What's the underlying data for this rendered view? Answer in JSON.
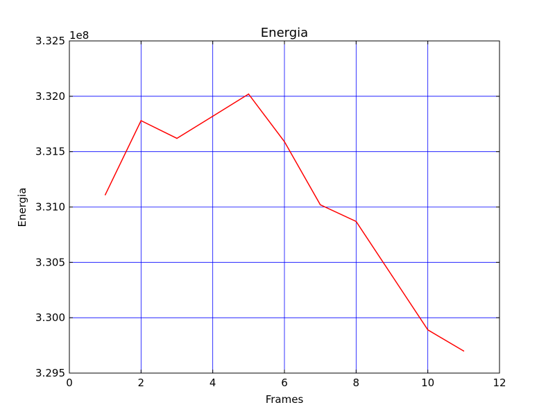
{
  "chart_data": {
    "type": "line",
    "title": "Energia",
    "xlabel": "Frames",
    "ylabel": "Energia",
    "y_offset_label": "1e8",
    "xlim": [
      0,
      12
    ],
    "ylim": [
      3.295,
      3.325
    ],
    "x_ticks": [
      0,
      2,
      4,
      6,
      8,
      10,
      12
    ],
    "x_tick_labels": [
      "0",
      "2",
      "4",
      "6",
      "8",
      "10",
      "12"
    ],
    "y_ticks": [
      3.295,
      3.3,
      3.305,
      3.31,
      3.315,
      3.32,
      3.325
    ],
    "y_tick_labels": [
      "3.295",
      "3.300",
      "3.305",
      "3.310",
      "3.315",
      "3.320",
      "3.325"
    ],
    "grid": true,
    "grid_color": "#0000ff",
    "line_color": "#ff0000",
    "series": [
      {
        "x": [
          1,
          2,
          3,
          4,
          5,
          6,
          7,
          8,
          9,
          10,
          11
        ],
        "values": [
          3.3111,
          3.3178,
          3.3162,
          3.3182,
          3.3202,
          3.3159,
          3.3102,
          3.3087,
          3.3038,
          3.2989,
          3.297
        ]
      }
    ]
  }
}
